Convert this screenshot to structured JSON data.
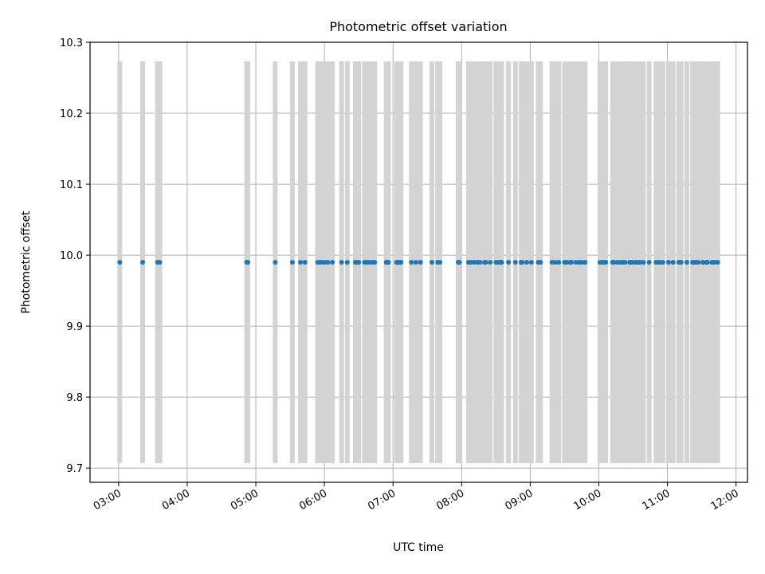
{
  "chart_data": {
    "type": "scatter",
    "title": "Photometric offset variation",
    "xlabel": "UTC time",
    "ylabel": "Photometric offset",
    "xlim": [
      "02:35",
      "12:10"
    ],
    "ylim": [
      9.68,
      10.3
    ],
    "x_tick_labels": [
      "03:00",
      "04:00",
      "05:00",
      "06:00",
      "07:00",
      "08:00",
      "09:00",
      "10:00",
      "11:00",
      "12:00"
    ],
    "y_tick_labels": [
      "9.7",
      "9.8",
      "9.9",
      "10.0",
      "10.1",
      "10.2",
      "10.3"
    ],
    "grid": true,
    "errorbar_low": 9.707,
    "errorbar_high": 10.273,
    "series": [
      {
        "marker_color": "#1f77b4",
        "errorbar_color": "#d3d3d3",
        "y": 9.99,
        "x": [
          "03:01",
          "03:21",
          "03:34",
          "03:36",
          "04:52",
          "04:53",
          "05:17",
          "05:32",
          "05:39",
          "05:43",
          "05:54",
          "05:56",
          "05:57",
          "06:00",
          "06:03",
          "06:07",
          "06:15",
          "06:20",
          "06:27",
          "06:28",
          "06:30",
          "06:35",
          "06:37",
          "06:39",
          "06:42",
          "06:44",
          "06:54",
          "06:55",
          "06:56",
          "07:03",
          "07:04",
          "07:06",
          "07:07",
          "07:16",
          "07:20",
          "07:24",
          "07:34",
          "07:39",
          "07:41",
          "07:57",
          "07:58",
          "08:06",
          "08:08",
          "08:11",
          "08:14",
          "08:16",
          "08:20",
          "08:21",
          "08:25",
          "08:30",
          "08:32",
          "08:34",
          "08:35",
          "08:41",
          "08:47",
          "08:52",
          "08:53",
          "08:57",
          "09:01",
          "09:07",
          "09:09",
          "09:19",
          "09:22",
          "09:25",
          "09:30",
          "09:32",
          "09:35",
          "09:36",
          "09:40",
          "09:43",
          "09:45",
          "09:48",
          "10:01",
          "10:03",
          "10:05",
          "10:06",
          "10:12",
          "10:13",
          "10:16",
          "10:19",
          "10:21",
          "10:23",
          "10:27",
          "10:29",
          "10:32",
          "10:34",
          "10:36",
          "10:39",
          "10:44",
          "10:50",
          "10:51",
          "10:53",
          "10:56",
          "11:01",
          "11:05",
          "11:10",
          "11:12",
          "11:17",
          "11:22",
          "11:23",
          "11:25",
          "11:27",
          "11:31",
          "11:34",
          "11:35",
          "11:39",
          "11:41",
          "11:44"
        ]
      }
    ]
  }
}
